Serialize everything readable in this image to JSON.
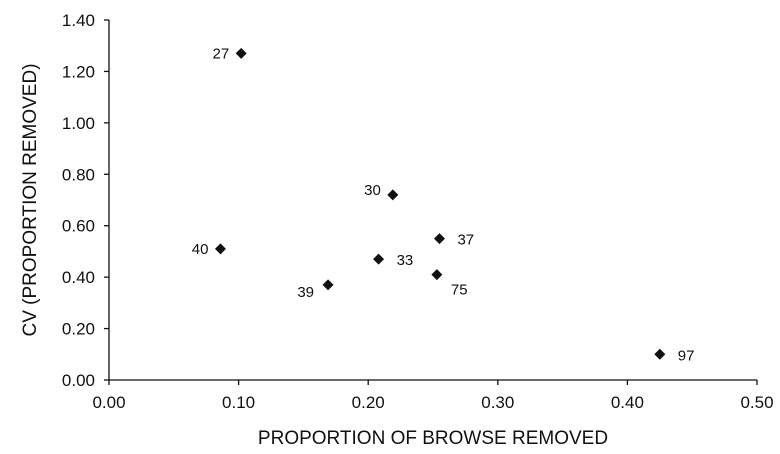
{
  "chart_data": {
    "type": "scatter",
    "xlabel": "PROPORTION OF BROWSE REMOVED",
    "ylabel": "CV (PROPORTION REMOVED)",
    "xlim": [
      0,
      0.5
    ],
    "ylim": [
      0,
      1.4
    ],
    "xticks": [
      "0.00",
      "0.10",
      "0.20",
      "0.30",
      "0.40",
      "0.50"
    ],
    "yticks": [
      "0.00",
      "0.20",
      "0.40",
      "0.60",
      "0.80",
      "1.00",
      "1.20",
      "1.40"
    ],
    "grid": false,
    "legend": "none",
    "marker": "diamond",
    "color": "#111111",
    "points": [
      {
        "label": "27",
        "x": 0.102,
        "y": 1.27,
        "label_side": "left"
      },
      {
        "label": "30",
        "x": 0.219,
        "y": 0.72,
        "label_side": "upper-left"
      },
      {
        "label": "37",
        "x": 0.255,
        "y": 0.55,
        "label_side": "right"
      },
      {
        "label": "40",
        "x": 0.086,
        "y": 0.51,
        "label_side": "left"
      },
      {
        "label": "33",
        "x": 0.208,
        "y": 0.47,
        "label_side": "right"
      },
      {
        "label": "75",
        "x": 0.253,
        "y": 0.41,
        "label_side": "lower-right"
      },
      {
        "label": "39",
        "x": 0.169,
        "y": 0.37,
        "label_side": "lower-left"
      },
      {
        "label": "97",
        "x": 0.425,
        "y": 0.1,
        "label_side": "right"
      }
    ]
  }
}
